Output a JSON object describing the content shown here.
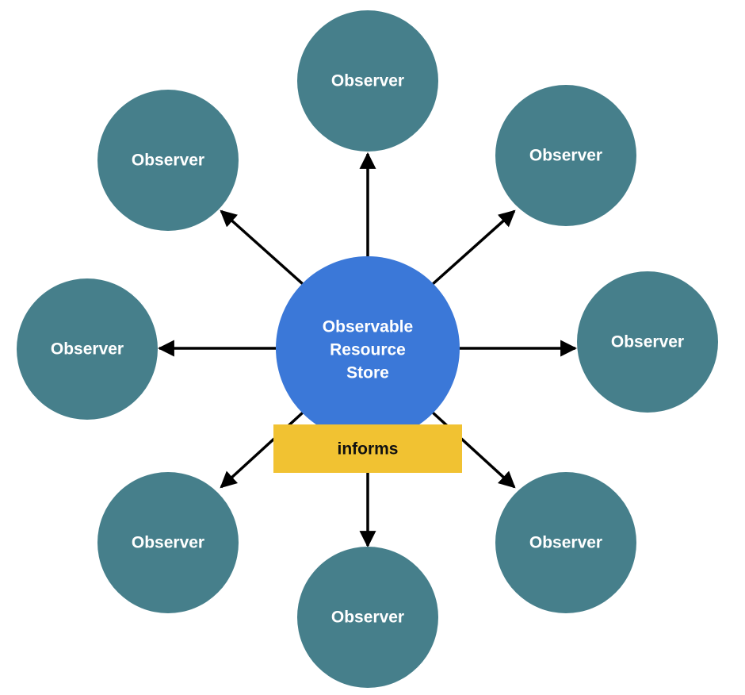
{
  "colors": {
    "observer_fill": "#467f8b",
    "center_fill": "#3b78d8",
    "label_fill": "#f1c232",
    "arrow": "#000000",
    "observer_text": "#ffffff",
    "label_text": "#111111"
  },
  "center": {
    "lines": [
      "Observable",
      "Resource",
      "Store"
    ]
  },
  "edge_label": "informs",
  "observers": [
    {
      "position": "top",
      "label": "Observer"
    },
    {
      "position": "top-right",
      "label": "Observer"
    },
    {
      "position": "right",
      "label": "Observer"
    },
    {
      "position": "bottom-right",
      "label": "Observer"
    },
    {
      "position": "bottom",
      "label": "Observer"
    },
    {
      "position": "bottom-left",
      "label": "Observer"
    },
    {
      "position": "left",
      "label": "Observer"
    },
    {
      "position": "top-left",
      "label": "Observer"
    }
  ]
}
